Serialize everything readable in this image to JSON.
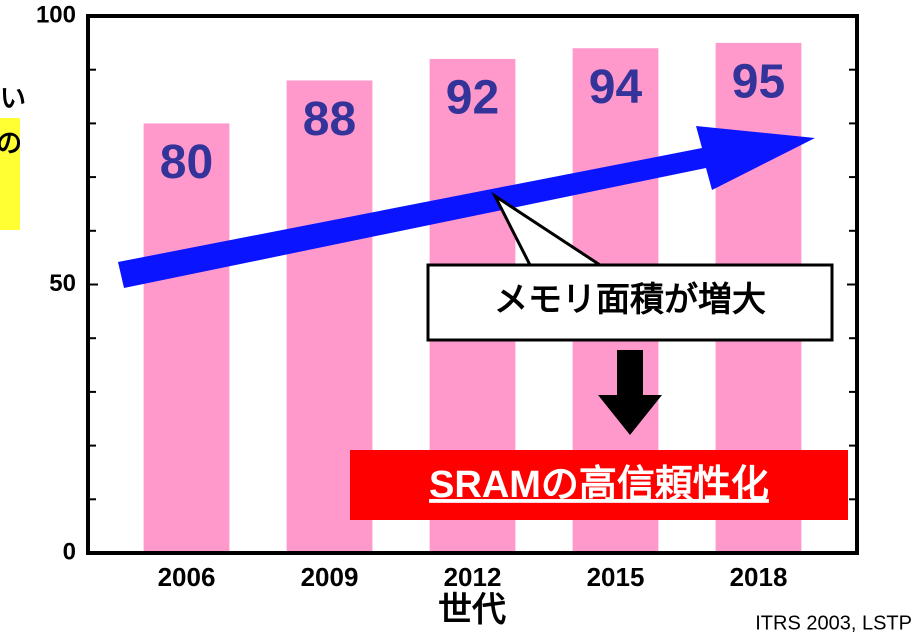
{
  "chart_data": {
    "type": "bar",
    "categories": [
      "2006",
      "2009",
      "2012",
      "2015",
      "2018"
    ],
    "values": [
      80,
      88,
      92,
      94,
      95
    ],
    "color": "#ff99cc",
    "value_label_color": "#333399",
    "ylim": [
      0,
      100
    ],
    "yticks": [
      0,
      50,
      100
    ],
    "minor_yticks": [
      10,
      20,
      30,
      40,
      60,
      70,
      80,
      90
    ],
    "x_label": "世代",
    "callout": "メモリ面積が増大",
    "conclusion": "SRAMの高信頼性化",
    "source": "ITRS 2003, LSTP",
    "left_fragments": [
      "い",
      "の"
    ]
  }
}
